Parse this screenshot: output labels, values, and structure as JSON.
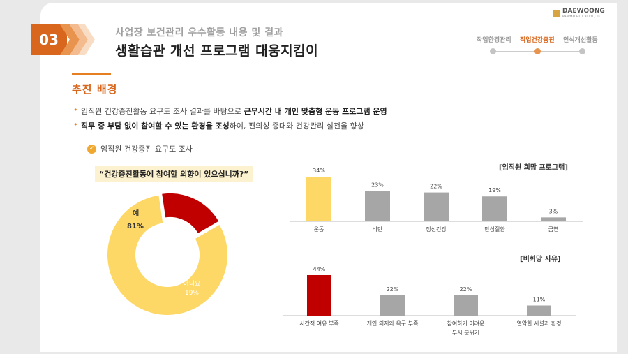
{
  "header": {
    "number": "03",
    "pretitle": "사업장 보건관리 우수활동 내용 및 결과",
    "title": "생활습관 개선 프로그램 대웅지킴이",
    "logo_text": "DAEWOONG",
    "logo_sub": "PHARMACEUTICAL CO.,LTD.",
    "steps": [
      "작업환경관리",
      "직업건강증진",
      "인식개선활동"
    ],
    "active_step": 1
  },
  "section": {
    "title": "추진 배경",
    "bullets": [
      {
        "pre": "임직원 건강증진활동 요구도 조사 결과를 바탕으로 ",
        "bold": "근무시간 내 개인 맞춤형 운동 프로그램 운영",
        "post": ""
      },
      {
        "pre": "",
        "bold": "직무 중 부담 없이 참여할 수 있는 환경을 조성",
        "post": "하여, 편의성 증대와 건강관리 실천율 향상"
      }
    ],
    "survey_title": "임직원 건강증진 요구도 조사",
    "question": "“건강증진활동에 참여할 의향이 있으십니까?”"
  },
  "colors": {
    "accent": "#d8661c",
    "yellow": "#fdd866",
    "red": "#c00000",
    "gray": "#a6a6a6"
  },
  "chart_data": [
    {
      "type": "pie",
      "variant": "donut",
      "categories": [
        "예",
        "아니요"
      ],
      "values": [
        81,
        19
      ],
      "value_labels": [
        "81%",
        "19%"
      ],
      "colors": [
        "#fdd866",
        "#c00000"
      ]
    },
    {
      "type": "bar",
      "title": "[임직원 희망 프로그램]",
      "categories": [
        "운동",
        "비만",
        "정신건강",
        "만성질환",
        "금연"
      ],
      "values": [
        34,
        23,
        22,
        19,
        3
      ],
      "value_labels": [
        "34%",
        "23%",
        "22%",
        "19%",
        "3%"
      ],
      "colors": [
        "#fdd866",
        "#a6a6a6",
        "#a6a6a6",
        "#a6a6a6",
        "#a6a6a6"
      ],
      "ylim": [
        0,
        34
      ]
    },
    {
      "type": "bar",
      "title": "[비희망 사유]",
      "categories": [
        "시간적 여유 부족",
        "개인 의지와 욕구 부족",
        "참여하기 어려운\n부서 분위기",
        "열악한 시설과 환경"
      ],
      "values": [
        44,
        22,
        22,
        11
      ],
      "value_labels": [
        "44%",
        "22%",
        "22%",
        "11%"
      ],
      "colors": [
        "#c00000",
        "#a6a6a6",
        "#a6a6a6",
        "#a6a6a6"
      ],
      "ylim": [
        0,
        44
      ]
    }
  ]
}
